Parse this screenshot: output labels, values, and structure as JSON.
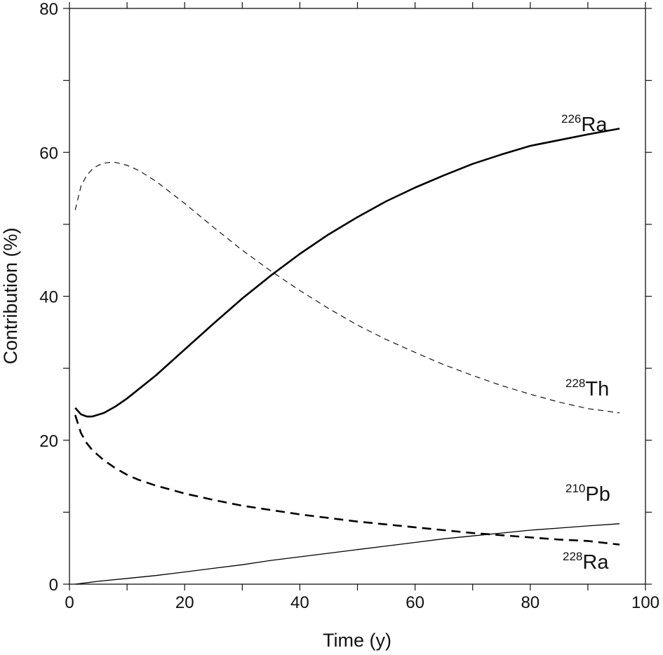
{
  "chart_data": {
    "type": "line",
    "title": "",
    "xlabel": "Time (y)",
    "ylabel": "Contribution (%)",
    "xlim": [
      0,
      100
    ],
    "ylim": [
      0,
      80
    ],
    "xticks": [
      0,
      20,
      40,
      60,
      80,
      100
    ],
    "yticks": [
      0,
      20,
      40,
      60,
      80
    ],
    "grid": false,
    "series": [
      {
        "name": "226Ra",
        "label_sup": "226",
        "label_base": "Ra",
        "style": "solid-thick",
        "x": [
          1,
          2,
          3,
          4,
          6,
          8,
          10,
          15,
          20,
          25,
          30,
          35,
          40,
          45,
          50,
          55,
          60,
          65,
          70,
          75,
          80,
          85,
          90,
          95.5
        ],
        "y": [
          24.5,
          23.6,
          23.3,
          23.3,
          23.8,
          24.7,
          25.8,
          29.0,
          32.6,
          36.2,
          39.7,
          42.9,
          45.9,
          48.6,
          51.0,
          53.2,
          55.1,
          56.8,
          58.4,
          59.7,
          60.9,
          61.7,
          62.5,
          63.3
        ]
      },
      {
        "name": "228Th",
        "label_sup": "228",
        "label_base": "Th",
        "style": "dashed-thin",
        "x": [
          1,
          2,
          3,
          4,
          5,
          6,
          7,
          8,
          10,
          12,
          15,
          20,
          25,
          30,
          35,
          40,
          45,
          50,
          55,
          60,
          65,
          70,
          75,
          80,
          85,
          90,
          95.5
        ],
        "y": [
          52.0,
          55.3,
          56.8,
          57.7,
          58.2,
          58.5,
          58.6,
          58.6,
          58.2,
          57.5,
          56.0,
          52.9,
          49.6,
          46.4,
          43.5,
          40.8,
          38.3,
          36.0,
          34.0,
          32.2,
          30.5,
          29.0,
          27.6,
          26.4,
          25.3,
          24.4,
          23.8
        ]
      },
      {
        "name": "210Pb",
        "label_sup": "210",
        "label_base": "Pb",
        "style": "solid-thin",
        "x": [
          1,
          5,
          10,
          15,
          20,
          25,
          30,
          35,
          40,
          45,
          50,
          55,
          60,
          65,
          70,
          75,
          80,
          85,
          90,
          95.5
        ],
        "y": [
          0.0,
          0.4,
          0.8,
          1.2,
          1.7,
          2.2,
          2.7,
          3.3,
          3.8,
          4.3,
          4.8,
          5.3,
          5.8,
          6.3,
          6.7,
          7.1,
          7.5,
          7.8,
          8.1,
          8.4
        ]
      },
      {
        "name": "228Ra",
        "label_sup": "228",
        "label_base": "Ra",
        "style": "dashed-thick",
        "x": [
          1,
          2,
          3,
          4,
          5,
          6,
          8,
          10,
          12,
          15,
          20,
          25,
          30,
          35,
          40,
          45,
          50,
          55,
          60,
          65,
          70,
          75,
          80,
          85,
          90,
          95.5
        ],
        "y": [
          23.5,
          21.0,
          19.6,
          18.6,
          17.9,
          17.2,
          16.1,
          15.2,
          14.5,
          13.7,
          12.6,
          11.7,
          10.9,
          10.3,
          9.7,
          9.2,
          8.7,
          8.3,
          7.9,
          7.5,
          7.1,
          6.8,
          6.5,
          6.2,
          6.0,
          5.5
        ]
      }
    ]
  }
}
